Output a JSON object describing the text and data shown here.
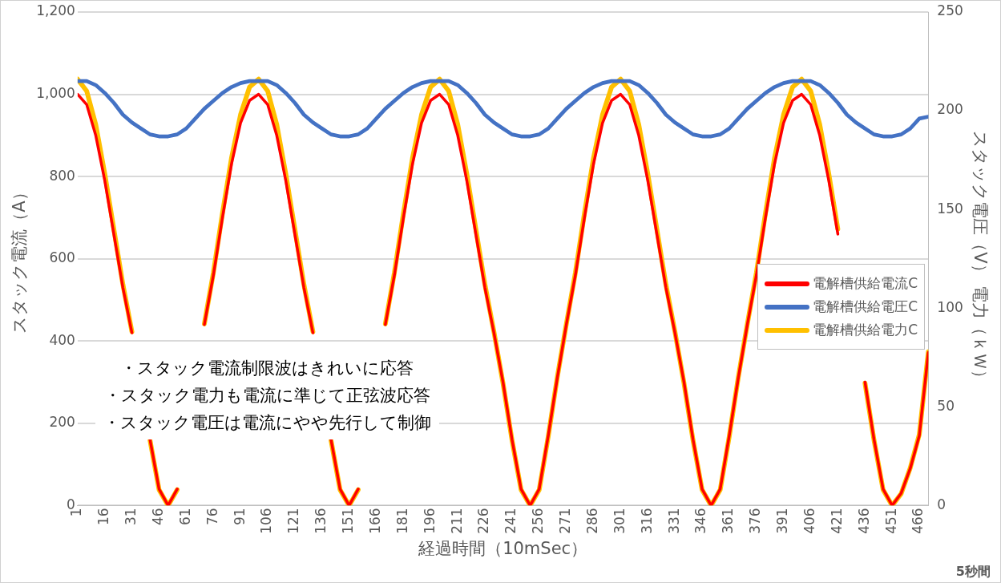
{
  "chart_data": {
    "type": "line",
    "xlabel": "経過時間（10mSec）",
    "ylabel": "スタック電流（A）",
    "y2label": "スタック電圧（V） 電力（ｋＷ）",
    "x": [
      1,
      6,
      11,
      16,
      21,
      26,
      31,
      36,
      41,
      46,
      51,
      56,
      61,
      66,
      71,
      76,
      81,
      86,
      91,
      96,
      101,
      106,
      111,
      116,
      121,
      126,
      131,
      136,
      141,
      146,
      151,
      156,
      161,
      166,
      171,
      176,
      181,
      186,
      191,
      196,
      201,
      206,
      211,
      216,
      221,
      226,
      231,
      236,
      241,
      246,
      251,
      256,
      261,
      266,
      271,
      276,
      281,
      286,
      291,
      296,
      301,
      306,
      311,
      316,
      321,
      326,
      331,
      336,
      341,
      346,
      351,
      356,
      361,
      366,
      371,
      376,
      381,
      386,
      391,
      396,
      401,
      406,
      411,
      416,
      421,
      426,
      431,
      436,
      441,
      446,
      451,
      456,
      461,
      466,
      471
    ],
    "series": [
      {
        "name": "電解槽供給電流C",
        "color": "#ff0000",
        "values": [
          1000,
          975,
          900,
          790,
          660,
          530,
          420,
          null,
          160,
          40,
          0,
          40,
          null,
          null,
          440,
          560,
          700,
          830,
          930,
          985,
          1000,
          975,
          900,
          790,
          660,
          530,
          420,
          null,
          160,
          40,
          0,
          40,
          null,
          null,
          440,
          560,
          700,
          830,
          930,
          985,
          1000,
          975,
          900,
          790,
          660,
          530,
          420,
          300,
          160,
          40,
          0,
          40,
          170,
          310,
          440,
          560,
          700,
          830,
          930,
          985,
          1000,
          975,
          900,
          790,
          660,
          530,
          420,
          300,
          160,
          40,
          0,
          40,
          170,
          310,
          440,
          560,
          700,
          830,
          930,
          985,
          1000,
          975,
          900,
          790,
          660,
          null,
          null,
          300,
          160,
          40,
          0,
          30,
          90,
          170,
          372
        ]
      },
      {
        "name": "電解槽供給電圧C",
        "color": "#4472c4",
        "axis": "y2",
        "values": [
          215,
          215,
          213,
          209,
          204,
          198,
          194,
          191,
          188,
          187,
          187,
          188,
          191,
          196,
          201,
          205,
          209,
          212,
          214,
          215,
          215,
          215,
          213,
          209,
          204,
          198,
          194,
          191,
          188,
          187,
          187,
          188,
          191,
          196,
          201,
          205,
          209,
          212,
          214,
          215,
          215,
          215,
          213,
          209,
          204,
          198,
          194,
          191,
          188,
          187,
          187,
          188,
          191,
          196,
          201,
          205,
          209,
          212,
          214,
          215,
          215,
          215,
          213,
          209,
          204,
          198,
          194,
          191,
          188,
          187,
          187,
          188,
          191,
          196,
          201,
          205,
          209,
          212,
          214,
          215,
          215,
          215,
          213,
          209,
          204,
          198,
          194,
          191,
          188,
          187,
          187,
          188,
          191,
          196,
          197
        ]
      },
      {
        "name": "電解槽供給電力C",
        "color": "#ffc000",
        "axis": "y2",
        "values": [
          216,
          210,
          193,
          168,
          140,
          112,
          88,
          null,
          33,
          8,
          0,
          8,
          null,
          null,
          92,
          118,
          148,
          176,
          198,
          212,
          216,
          210,
          193,
          168,
          140,
          112,
          88,
          null,
          33,
          8,
          0,
          8,
          null,
          null,
          92,
          118,
          148,
          176,
          198,
          212,
          216,
          210,
          193,
          168,
          140,
          112,
          88,
          62,
          33,
          8,
          0,
          8,
          35,
          65,
          92,
          118,
          148,
          176,
          198,
          212,
          216,
          210,
          193,
          168,
          140,
          112,
          88,
          62,
          33,
          8,
          0,
          8,
          35,
          65,
          92,
          118,
          148,
          176,
          198,
          212,
          216,
          210,
          193,
          168,
          140,
          null,
          null,
          62,
          33,
          8,
          0,
          6,
          19,
          36,
          78
        ]
      }
    ],
    "xlim": [
      1,
      471
    ],
    "xticks": [
      1,
      16,
      31,
      46,
      61,
      76,
      91,
      106,
      121,
      136,
      151,
      166,
      181,
      196,
      211,
      226,
      241,
      256,
      271,
      286,
      301,
      316,
      331,
      346,
      361,
      376,
      391,
      406,
      421,
      436,
      451,
      466
    ],
    "ylim": [
      0,
      1200
    ],
    "yticks": [
      0,
      200,
      400,
      600,
      800,
      {
        "value": 1000,
        "label": "1,000"
      },
      {
        "value": 1200,
        "label": "1,200"
      }
    ],
    "y2lim": [
      0,
      250
    ],
    "y2ticks": [
      0,
      50,
      100,
      150,
      200,
      250
    ],
    "grid": "y",
    "legend": "right",
    "marker": "none",
    "line_style": "solid",
    "annotations": [
      "・スタック電流制限波はきれいに応答",
      "・スタック電力も電流に準じて正弦波応答",
      "・スタック電圧は電流にやや先行して制御",
      "5秒間"
    ]
  }
}
